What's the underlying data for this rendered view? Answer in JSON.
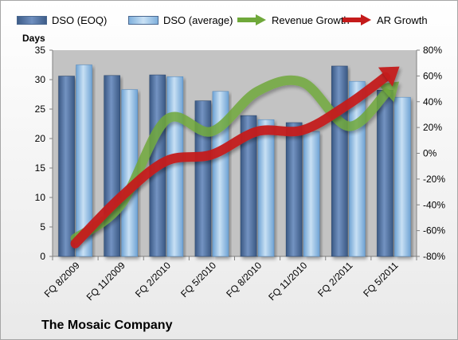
{
  "chart_data": {
    "type": "bar",
    "title": "The Mosaic Company",
    "categories": [
      "FQ 8/2009",
      "FQ 11/2009",
      "FQ 2/2010",
      "FQ 5/2010",
      "FQ 8/2010",
      "FQ 11/2010",
      "FQ 2/2011",
      "FQ 5/2011"
    ],
    "series": [
      {
        "name": "DSO (EOQ)",
        "type": "bar",
        "axis": "left",
        "color": "#4f6f9e",
        "values": [
          30.6,
          30.7,
          30.8,
          26.4,
          23.9,
          22.7,
          32.3,
          28.2
        ]
      },
      {
        "name": "DSO (average)",
        "type": "bar",
        "axis": "left",
        "color": "#9dc3e6",
        "values": [
          32.5,
          28.3,
          30.5,
          28.0,
          23.2,
          21.2,
          29.7,
          27.0
        ]
      },
      {
        "name": "Revenue Growth",
        "type": "line",
        "axis": "right",
        "color": "#6fa83a",
        "values": [
          -66,
          -40,
          26,
          17,
          48,
          55,
          21,
          52
        ]
      },
      {
        "name": "AR Growth",
        "type": "line",
        "axis": "right",
        "color": "#c41a1a",
        "values": [
          -70,
          -34,
          -6,
          -1,
          17,
          18,
          38,
          64
        ]
      }
    ],
    "ylabel": "Days",
    "ylim": [
      0,
      35
    ],
    "yticks": [
      "0",
      "5",
      "10",
      "15",
      "20",
      "25",
      "30",
      "35"
    ],
    "y2lim": [
      -80,
      80
    ],
    "y2ticks": [
      "-80%",
      "-60%",
      "-40%",
      "-20%",
      "0%",
      "20%",
      "40%",
      "60%",
      "80%"
    ],
    "legend_position": "top",
    "plot_background": "#c3c3c3",
    "grid": false
  }
}
